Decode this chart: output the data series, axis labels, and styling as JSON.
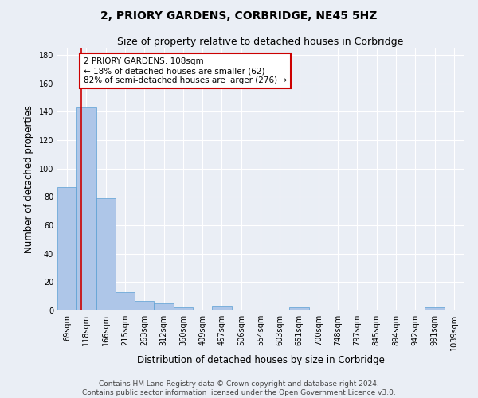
{
  "title": "2, PRIORY GARDENS, CORBRIDGE, NE45 5HZ",
  "subtitle": "Size of property relative to detached houses in Corbridge",
  "xlabel": "Distribution of detached houses by size in Corbridge",
  "ylabel": "Number of detached properties",
  "footer_line1": "Contains HM Land Registry data © Crown copyright and database right 2024.",
  "footer_line2": "Contains public sector information licensed under the Open Government Licence v3.0.",
  "bin_labels": [
    "69sqm",
    "118sqm",
    "166sqm",
    "215sqm",
    "263sqm",
    "312sqm",
    "360sqm",
    "409sqm",
    "457sqm",
    "506sqm",
    "554sqm",
    "603sqm",
    "651sqm",
    "700sqm",
    "748sqm",
    "797sqm",
    "845sqm",
    "894sqm",
    "942sqm",
    "991sqm",
    "1039sqm"
  ],
  "bar_values": [
    87,
    143,
    79,
    13,
    7,
    5,
    2,
    0,
    3,
    0,
    0,
    0,
    2,
    0,
    0,
    0,
    0,
    0,
    0,
    2,
    0
  ],
  "bar_color": "#aec6e8",
  "bar_edge_color": "#5a9fd4",
  "property_line_x": 1.22,
  "annotation_text": "2 PRIORY GARDENS: 108sqm\n← 18% of detached houses are smaller (62)\n82% of semi-detached houses are larger (276) →",
  "annotation_box_color": "#ffffff",
  "annotation_box_edge": "#cc0000",
  "property_line_color": "#cc0000",
  "ylim": [
    0,
    185
  ],
  "yticks": [
    0,
    20,
    40,
    60,
    80,
    100,
    120,
    140,
    160,
    180
  ],
  "bg_color": "#eaeef5",
  "grid_color": "#ffffff",
  "title_fontsize": 10,
  "subtitle_fontsize": 9,
  "axis_label_fontsize": 8.5,
  "tick_fontsize": 7,
  "footer_fontsize": 6.5,
  "annotation_fontsize": 7.5
}
